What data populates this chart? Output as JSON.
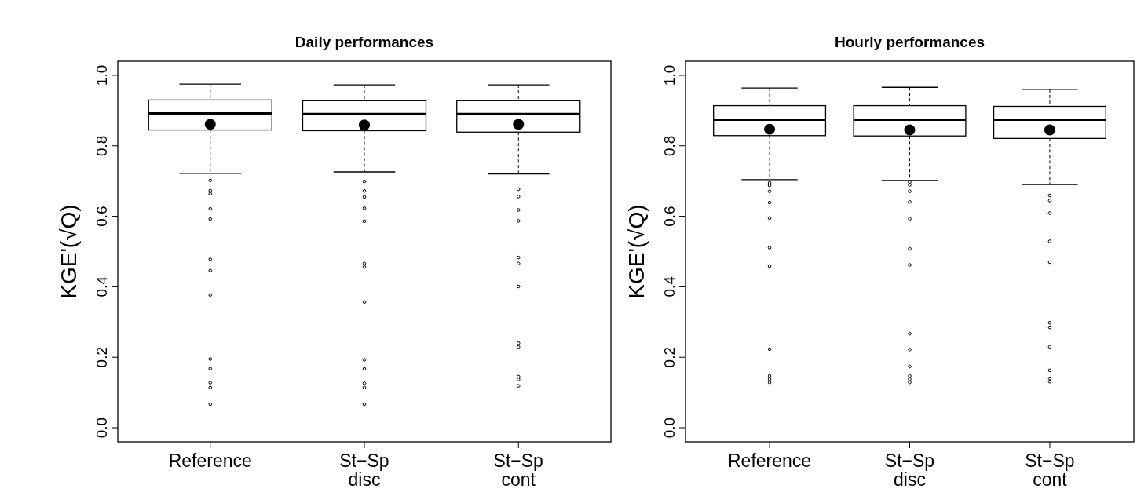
{
  "chart_data": [
    {
      "type": "box",
      "title": "Daily performances",
      "ylabel": "KGE'(√Q)",
      "categories": [
        "Reference",
        "St−Sp disc",
        "St−Sp cont"
      ],
      "ylim": [
        -0.04,
        1.04
      ],
      "yticks": [
        {
          "value": 0,
          "label": "0.0"
        },
        {
          "value": 0.2,
          "label": "0.2"
        },
        {
          "value": 0.4,
          "label": "0.4"
        },
        {
          "value": 0.6,
          "label": "0.6"
        },
        {
          "value": 0.8,
          "label": "0.8"
        },
        {
          "value": 1,
          "label": "1.0"
        }
      ],
      "grid": false,
      "boxes": [
        {
          "low": 0.722,
          "q1": 0.845,
          "median": 0.892,
          "q3": 0.93,
          "high": 0.975,
          "mean": 0.861,
          "outliers": [
            0.702,
            0.673,
            0.664,
            0.621,
            0.592,
            0.478,
            0.446,
            0.377,
            0.195,
            0.168,
            0.128,
            0.114,
            0.067
          ]
        },
        {
          "low": 0.726,
          "q1": 0.843,
          "median": 0.89,
          "q3": 0.928,
          "high": 0.973,
          "mean": 0.859,
          "outliers": [
            0.699,
            0.672,
            0.655,
            0.623,
            0.586,
            0.466,
            0.456,
            0.357,
            0.193,
            0.167,
            0.126,
            0.114,
            0.067
          ]
        },
        {
          "low": 0.72,
          "q1": 0.839,
          "median": 0.89,
          "q3": 0.928,
          "high": 0.973,
          "mean": 0.861,
          "outliers": [
            0.677,
            0.656,
            0.618,
            0.587,
            0.483,
            0.466,
            0.401,
            0.24,
            0.229,
            0.145,
            0.137,
            0.119
          ]
        }
      ]
    },
    {
      "type": "box",
      "title": "Hourly performances",
      "ylabel": "KGE'(√Q)",
      "categories": [
        "Reference",
        "St−Sp disc",
        "St−Sp cont"
      ],
      "ylim": [
        -0.04,
        1.04
      ],
      "yticks": [
        {
          "value": 0,
          "label": "0.0"
        },
        {
          "value": 0.2,
          "label": "0.2"
        },
        {
          "value": 0.4,
          "label": "0.4"
        },
        {
          "value": 0.6,
          "label": "0.6"
        },
        {
          "value": 0.8,
          "label": "0.8"
        },
        {
          "value": 1,
          "label": "1.0"
        }
      ],
      "grid": false,
      "boxes": [
        {
          "low": 0.704,
          "q1": 0.829,
          "median": 0.874,
          "q3": 0.914,
          "high": 0.964,
          "mean": 0.847,
          "outliers": [
            0.695,
            0.688,
            0.671,
            0.639,
            0.595,
            0.511,
            0.459,
            0.223,
            0.147,
            0.138,
            0.129
          ]
        },
        {
          "low": 0.702,
          "q1": 0.828,
          "median": 0.874,
          "q3": 0.914,
          "high": 0.966,
          "mean": 0.845,
          "outliers": [
            0.697,
            0.689,
            0.671,
            0.641,
            0.593,
            0.508,
            0.462,
            0.267,
            0.222,
            0.174,
            0.147,
            0.138,
            0.129
          ]
        },
        {
          "low": 0.69,
          "q1": 0.821,
          "median": 0.874,
          "q3": 0.912,
          "high": 0.96,
          "mean": 0.845,
          "outliers": [
            0.659,
            0.645,
            0.609,
            0.529,
            0.47,
            0.298,
            0.285,
            0.23,
            0.163,
            0.14,
            0.131
          ]
        }
      ]
    }
  ]
}
